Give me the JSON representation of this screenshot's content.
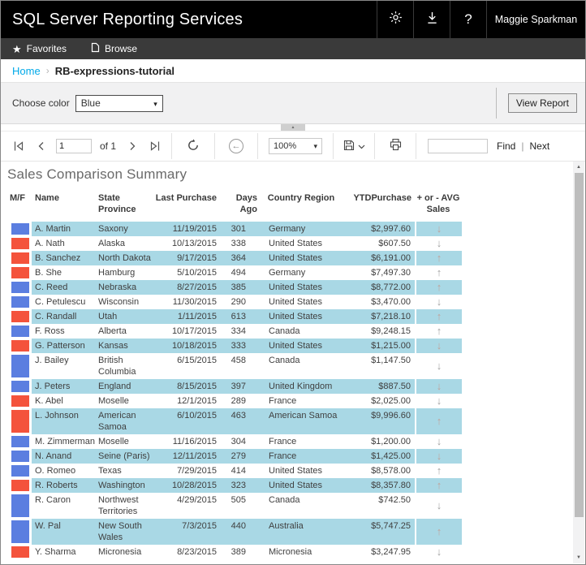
{
  "app": {
    "title": "SQL Server Reporting Services",
    "user_name": "Maggie Sparkman"
  },
  "nav": {
    "favorites_label": "Favorites",
    "browse_label": "Browse"
  },
  "breadcrumb": {
    "home": "Home",
    "current": "RB-expressions-tutorial"
  },
  "parameters": {
    "choose_color_label": "Choose color",
    "choose_color_value": "Blue",
    "view_report_label": "View Report"
  },
  "toolbar": {
    "current_page": "1",
    "page_count_label": "of 1",
    "zoom_value": "100%",
    "find_value": "",
    "find_label": "Find",
    "divider": "|",
    "next_label": "Next"
  },
  "report": {
    "title": "Sales Comparison Summary",
    "columns": [
      "M/F",
      "Name",
      "State\nProvince",
      "Last Purchase",
      "Days Ago",
      "Country Region",
      "YTDPurchase",
      "+ or - AVG\nSales"
    ],
    "rows": [
      {
        "mf": "M",
        "name": "A. Martin",
        "state": "Saxony",
        "last_purchase": "11/19/2015",
        "days_ago": 301,
        "country": "Germany",
        "ytd": "$2,997.60",
        "trend": "down"
      },
      {
        "mf": "F",
        "name": "A. Nath",
        "state": "Alaska",
        "last_purchase": "10/13/2015",
        "days_ago": 338,
        "country": "United States",
        "ytd": "$607.50",
        "trend": "down"
      },
      {
        "mf": "F",
        "name": "B. Sanchez",
        "state": "North Dakota",
        "last_purchase": "9/17/2015",
        "days_ago": 364,
        "country": "United States",
        "ytd": "$6,191.00",
        "trend": "up"
      },
      {
        "mf": "F",
        "name": "B. She",
        "state": "Hamburg",
        "last_purchase": "5/10/2015",
        "days_ago": 494,
        "country": "Germany",
        "ytd": "$7,497.30",
        "trend": "up"
      },
      {
        "mf": "M",
        "name": "C. Reed",
        "state": "Nebraska",
        "last_purchase": "8/27/2015",
        "days_ago": 385,
        "country": "United States",
        "ytd": "$8,772.00",
        "trend": "up"
      },
      {
        "mf": "M",
        "name": "C. Petulescu",
        "state": "Wisconsin",
        "last_purchase": "11/30/2015",
        "days_ago": 290,
        "country": "United States",
        "ytd": "$3,470.00",
        "trend": "down"
      },
      {
        "mf": "F",
        "name": "C. Randall",
        "state": "Utah",
        "last_purchase": "1/11/2015",
        "days_ago": 613,
        "country": "United States",
        "ytd": "$7,218.10",
        "trend": "up"
      },
      {
        "mf": "M",
        "name": "F. Ross",
        "state": "Alberta",
        "last_purchase": "10/17/2015",
        "days_ago": 334,
        "country": "Canada",
        "ytd": "$9,248.15",
        "trend": "up"
      },
      {
        "mf": "F",
        "name": "G. Patterson",
        "state": "Kansas",
        "last_purchase": "10/18/2015",
        "days_ago": 333,
        "country": "United States",
        "ytd": "$1,215.00",
        "trend": "down"
      },
      {
        "mf": "M",
        "name": "J. Bailey",
        "state": "British Columbia",
        "last_purchase": "6/15/2015",
        "days_ago": 458,
        "country": "Canada",
        "ytd": "$1,147.50",
        "trend": "down"
      },
      {
        "mf": "M",
        "name": "J. Peters",
        "state": "England",
        "last_purchase": "8/15/2015",
        "days_ago": 397,
        "country": "United Kingdom",
        "ytd": "$887.50",
        "trend": "down"
      },
      {
        "mf": "F",
        "name": "K. Abel",
        "state": "Moselle",
        "last_purchase": "12/1/2015",
        "days_ago": 289,
        "country": "France",
        "ytd": "$2,025.00",
        "trend": "down"
      },
      {
        "mf": "F",
        "name": "L. Johnson",
        "state": "American Samoa",
        "last_purchase": "6/10/2015",
        "days_ago": 463,
        "country": "American Samoa",
        "ytd": "$9,996.60",
        "trend": "up"
      },
      {
        "mf": "M",
        "name": "M. Zimmerman",
        "state": "Moselle",
        "last_purchase": "11/16/2015",
        "days_ago": 304,
        "country": "France",
        "ytd": "$1,200.00",
        "trend": "down"
      },
      {
        "mf": "M",
        "name": "N. Anand",
        "state": "Seine (Paris)",
        "last_purchase": "12/11/2015",
        "days_ago": 279,
        "country": "France",
        "ytd": "$1,425.00",
        "trend": "down"
      },
      {
        "mf": "M",
        "name": "O. Romeo",
        "state": "Texas",
        "last_purchase": "7/29/2015",
        "days_ago": 414,
        "country": "United States",
        "ytd": "$8,578.00",
        "trend": "up"
      },
      {
        "mf": "F",
        "name": "R. Roberts",
        "state": "Washington",
        "last_purchase": "10/28/2015",
        "days_ago": 323,
        "country": "United States",
        "ytd": "$8,357.80",
        "trend": "up"
      },
      {
        "mf": "M",
        "name": "R. Caron",
        "state": "Northwest Territories",
        "last_purchase": "4/29/2015",
        "days_ago": 505,
        "country": "Canada",
        "ytd": "$742.50",
        "trend": "down"
      },
      {
        "mf": "M",
        "name": "W. Pal",
        "state": "New South Wales",
        "last_purchase": "7/3/2015",
        "days_ago": 440,
        "country": "Australia",
        "ytd": "$5,747.25",
        "trend": "up"
      },
      {
        "mf": "F",
        "name": "Y. Sharma",
        "state": "Micronesia",
        "last_purchase": "8/23/2015",
        "days_ago": 389,
        "country": "Micronesia",
        "ytd": "$3,247.95",
        "trend": "down"
      }
    ],
    "trend_glyphs": {
      "up": "↑",
      "down": "↓"
    }
  },
  "colors": {
    "male_square": "#5b7ee0",
    "female_square": "#f4533c",
    "row_stripe": "#a9d8e5",
    "link": "#00a9e8"
  }
}
